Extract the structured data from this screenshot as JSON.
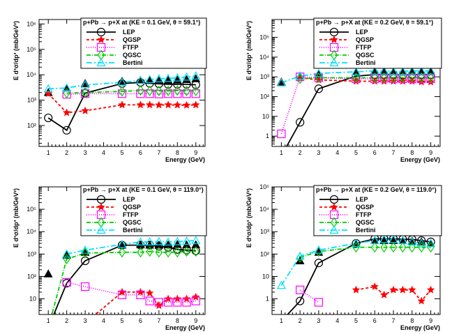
{
  "styles": {
    "LEP": {
      "color": "#000000",
      "dash": "",
      "marker": "open-circle"
    },
    "QGSP": {
      "color": "#ff0000",
      "dash": "4,3",
      "marker": "star"
    },
    "FTFP": {
      "color": "#ff00ff",
      "dash": "1,2",
      "marker": "open-square"
    },
    "QGSC": {
      "color": "#00cc00",
      "dash": "6,2,1,2",
      "marker": "open-diamond"
    },
    "Bertini": {
      "color": "#00e0ff",
      "dash": "8,3,2,3",
      "marker": "open-triangle"
    },
    "data": {
      "color": "#000000",
      "marker": "filled-triangle"
    }
  },
  "chart_data": [
    {
      "type": "line",
      "title": "p+Pb → p+X at (KE = 0.1 GeV, θ =  59.1°)",
      "xlabel": "Energy (GeV)",
      "ylabel": "E d³σ/dp³ (mb/GeV²)",
      "xlim": [
        0.5,
        9.5
      ],
      "ylim": [
        15,
        1500000
      ],
      "yscale": "log",
      "xticks": [
        1,
        2,
        3,
        4,
        5,
        6,
        7,
        8,
        9
      ],
      "yticks": [
        {
          "v": 100,
          "label": "10²"
        },
        {
          "v": 1000,
          "label": "10³"
        },
        {
          "v": 10000,
          "label": "10⁴"
        },
        {
          "v": 100000,
          "label": "10⁵"
        },
        {
          "v": 1000000,
          "label": "10⁶"
        }
      ],
      "legend": {
        "position": "top-right",
        "entries": [
          "LEP",
          "QGSP",
          "FTFP",
          "QGSC",
          "Bertini"
        ]
      },
      "x": [
        1,
        2,
        3,
        5,
        6,
        6.5,
        7,
        7.5,
        8,
        8.5,
        9
      ],
      "series": [
        {
          "name": "LEP",
          "values": [
            200,
            65,
            1900,
            4500,
            5000,
            4600,
            4400,
            4200,
            4200,
            4200,
            4000
          ]
        },
        {
          "name": "QGSP",
          "values": [
            1800,
            320,
            380,
            650,
            650,
            650,
            640,
            650,
            640,
            630,
            650
          ]
        },
        {
          "name": "FTFP",
          "values": [
            null,
            1700,
            1800,
            1800,
            1800,
            1800,
            1750,
            1800,
            1800,
            1800,
            1800
          ]
        },
        {
          "name": "QGSC",
          "values": [
            null,
            1900,
            2000,
            2200,
            2400,
            2300,
            2300,
            2300,
            2400,
            2300,
            2300
          ]
        },
        {
          "name": "Bertini",
          "values": [
            2800,
            3000,
            4000,
            5000,
            6000,
            6500,
            7000,
            7200,
            7600,
            8200,
            9000
          ]
        }
      ],
      "data_points": {
        "x": [
          1,
          2,
          3,
          5,
          6,
          6.5,
          7,
          7.5,
          8,
          8.5,
          9
        ],
        "values": [
          2000,
          3000,
          4500,
          5500,
          6000,
          6000,
          5800,
          6000,
          6200,
          6500,
          7000
        ]
      }
    },
    {
      "type": "line",
      "title": "p+Pb → p+X at (KE = 0.2 GeV, θ =  59.1°)",
      "xlabel": "Energy (GeV)",
      "ylabel": "E d³σ/dp³ (mb/GeV²)",
      "xlim": [
        0.5,
        9.5
      ],
      "ylim": [
        0.3,
        800000
      ],
      "yscale": "log",
      "xticks": [
        1,
        2,
        3,
        4,
        5,
        6,
        7,
        8,
        9
      ],
      "yticks": [
        {
          "v": 1,
          "label": "1"
        },
        {
          "v": 10,
          "label": "10"
        },
        {
          "v": 100,
          "label": "10²"
        },
        {
          "v": 1000,
          "label": "10³"
        },
        {
          "v": 10000,
          "label": "10⁴"
        },
        {
          "v": 100000,
          "label": "10⁵"
        }
      ],
      "legend": {
        "position": "top-right",
        "entries": [
          "LEP",
          "QGSP",
          "FTFP",
          "QGSC",
          "Bertini"
        ]
      },
      "x": [
        1,
        2,
        3,
        5,
        6,
        6.5,
        7,
        7.5,
        8,
        8.5,
        9
      ],
      "series": [
        {
          "name": "LEP",
          "values": [
            0.1,
            5,
            250,
            1100,
            1300,
            1300,
            1300,
            1250,
            1300,
            1300,
            1300
          ]
        },
        {
          "name": "QGSP",
          "values": [
            null,
            900,
            700,
            600,
            600,
            600,
            600,
            600,
            600,
            550,
            550
          ]
        },
        {
          "name": "FTFP",
          "values": [
            1.3,
            1000,
            900,
            800,
            800,
            850,
            800,
            800,
            800,
            800,
            800
          ]
        },
        {
          "name": "QGSC",
          "values": [
            null,
            800,
            900,
            900,
            900,
            900,
            900,
            900,
            950,
            900,
            900
          ]
        },
        {
          "name": "Bertini",
          "values": [
            500,
            1100,
            1500,
            1800,
            2000,
            2000,
            1900,
            1900,
            2000,
            2000,
            2000
          ]
        }
      ],
      "data_points": {
        "x": [
          1,
          2,
          3,
          5,
          6,
          6.5,
          7,
          7.5,
          8,
          8.5,
          9
        ],
        "values": [
          550,
          1100,
          1400,
          1800,
          2000,
          2000,
          1800,
          1900,
          1900,
          1900,
          1900
        ]
      }
    },
    {
      "type": "line",
      "title": "p+Pb → p+X at (KE = 0.1 GeV, θ = 119.0°)",
      "xlabel": "Energy (GeV)",
      "ylabel": "E d³σ/dp³ (mb/GeV²)",
      "xlim": [
        0.5,
        9.5
      ],
      "ylim": [
        2,
        1000000
      ],
      "yscale": "log",
      "xticks": [
        1,
        2,
        3,
        4,
        5,
        6,
        7,
        8,
        9
      ],
      "yticks": [
        {
          "v": 10,
          "label": "10"
        },
        {
          "v": 100,
          "label": "10²"
        },
        {
          "v": 1000,
          "label": "10³"
        },
        {
          "v": 10000,
          "label": "10⁴"
        },
        {
          "v": 100000,
          "label": "10⁵"
        }
      ],
      "legend": {
        "position": "top-right",
        "entries": [
          "LEP",
          "QGSP",
          "FTFP",
          "QGSC",
          "Bertini"
        ]
      },
      "x": [
        1,
        2,
        3,
        5,
        6,
        6.5,
        7,
        7.5,
        8,
        8.5,
        9
      ],
      "series": [
        {
          "name": "LEP",
          "values": [
            0.5,
            50,
            500,
            2500,
            2500,
            2500,
            2200,
            2000,
            1600,
            1500,
            1400
          ]
        },
        {
          "name": "QGSP",
          "values": [
            null,
            null,
            0.8,
            20,
            20,
            18,
            5,
            10,
            10,
            10,
            12
          ]
        },
        {
          "name": "FTFP",
          "values": [
            null,
            55,
            35,
            15,
            15,
            8,
            7,
            7,
            7,
            7,
            8
          ]
        },
        {
          "name": "QGSC",
          "values": [
            0.5,
            600,
            1100,
            1200,
            1200,
            1300,
            1200,
            1200,
            1200,
            1300,
            1300
          ]
        },
        {
          "name": "Bertini",
          "values": [
            null,
            1000,
            1500,
            2700,
            3500,
            3500,
            3600,
            3500,
            3600,
            3800,
            4000
          ]
        }
      ],
      "data_points": {
        "x": [
          1,
          2,
          3,
          5,
          6,
          6.5,
          7,
          7.5,
          8,
          8.5,
          9
        ],
        "values": [
          130,
          900,
          1200,
          2500,
          2600,
          2500,
          2500,
          2600,
          2700,
          2600,
          2600
        ]
      }
    },
    {
      "type": "line",
      "title": "p+Pb → p+X at (KE = 0.2 GeV, θ = 119.0°)",
      "xlabel": "Energy (GeV)",
      "ylabel": "E d³σ/dp³ (mb/GeV²)",
      "xlim": [
        0.5,
        9.5
      ],
      "ylim": [
        0.2,
        100000
      ],
      "yscale": "log",
      "xticks": [
        1,
        2,
        3,
        4,
        5,
        6,
        7,
        8,
        9
      ],
      "yticks": [
        {
          "v": 1,
          "label": "1"
        },
        {
          "v": 10,
          "label": "10"
        },
        {
          "v": 100,
          "label": "10²"
        },
        {
          "v": 1000,
          "label": "10³"
        },
        {
          "v": 10000,
          "label": "10⁴"
        },
        {
          "v": 100000,
          "label": "10⁵"
        }
      ],
      "legend": {
        "position": "top-right",
        "entries": [
          "LEP",
          "QGSP",
          "FTFP",
          "QGSC",
          "Bertini"
        ]
      },
      "x": [
        1,
        2,
        3,
        5,
        6,
        6.5,
        7,
        7.5,
        8,
        8.5,
        9
      ],
      "series": [
        {
          "name": "LEP",
          "values": [
            0.1,
            0.8,
            40,
            300,
            480,
            480,
            480,
            460,
            450,
            400,
            350
          ]
        },
        {
          "name": "QGSP",
          "values": [
            null,
            null,
            null,
            2.5,
            3.5,
            1.5,
            2.5,
            2.5,
            2.5,
            0.8,
            2.5
          ]
        },
        {
          "name": "FTFP",
          "values": [
            null,
            2.5,
            0.7,
            null,
            null,
            null,
            null,
            null,
            null,
            null,
            null
          ]
        },
        {
          "name": "QGSC",
          "values": [
            null,
            70,
            130,
            200,
            200,
            200,
            200,
            200,
            200,
            200,
            200
          ]
        },
        {
          "name": "Bertini",
          "values": [
            4,
            80,
            150,
            300,
            400,
            450,
            450,
            400,
            350,
            300,
            300
          ]
        }
      ],
      "data_points": {
        "x": [
          1,
          2,
          3,
          5,
          6,
          6.5,
          7,
          7.5,
          8,
          8.5,
          9
        ],
        "values": [
          null,
          50,
          120,
          300,
          400,
          400,
          400,
          400,
          380,
          350,
          300
        ]
      }
    }
  ]
}
